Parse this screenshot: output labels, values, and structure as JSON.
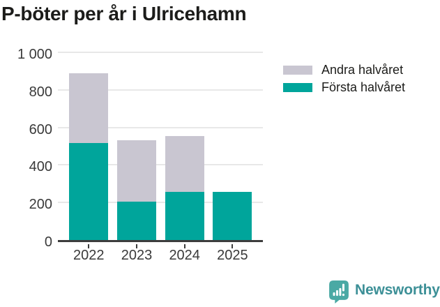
{
  "chart_data": {
    "type": "bar",
    "stacked": true,
    "title": "P-böter per år i Ulricehamn",
    "categories": [
      "2022",
      "2023",
      "2024",
      "2025"
    ],
    "series": [
      {
        "name": "Första halvåret",
        "color": "#00a59b",
        "values": [
          515,
          205,
          255,
          255
        ]
      },
      {
        "name": "Andra halvåret",
        "color": "#c9c6d1",
        "values": [
          375,
          325,
          300,
          0
        ]
      }
    ],
    "legend": [
      {
        "label": "Andra halvåret",
        "color": "#c9c6d1"
      },
      {
        "label": "Första halvåret",
        "color": "#00a59b"
      }
    ],
    "xlabel": "",
    "ylabel": "",
    "ylim": [
      0,
      1000
    ],
    "yticks": [
      {
        "value": 0,
        "label": "0"
      },
      {
        "value": 200,
        "label": "200"
      },
      {
        "value": 400,
        "label": "400"
      },
      {
        "value": 600,
        "label": "600"
      },
      {
        "value": 800,
        "label": "800"
      },
      {
        "value": 1000,
        "label": "1 000"
      }
    ],
    "grid": true,
    "legend_position": "top-right"
  },
  "branding": {
    "name": "Newsworthy",
    "icon": "newsworthy-speech-bubble-bar-chart-icon",
    "text_color": "#3d9097",
    "icon_color": "#4aa9a4"
  },
  "colors": {
    "background": "#ffffff",
    "title": "#1c1c1a",
    "axis_text": "#3a3a3a",
    "gridline": "#e8e8e8",
    "axis_line": "#3d3d3d"
  }
}
